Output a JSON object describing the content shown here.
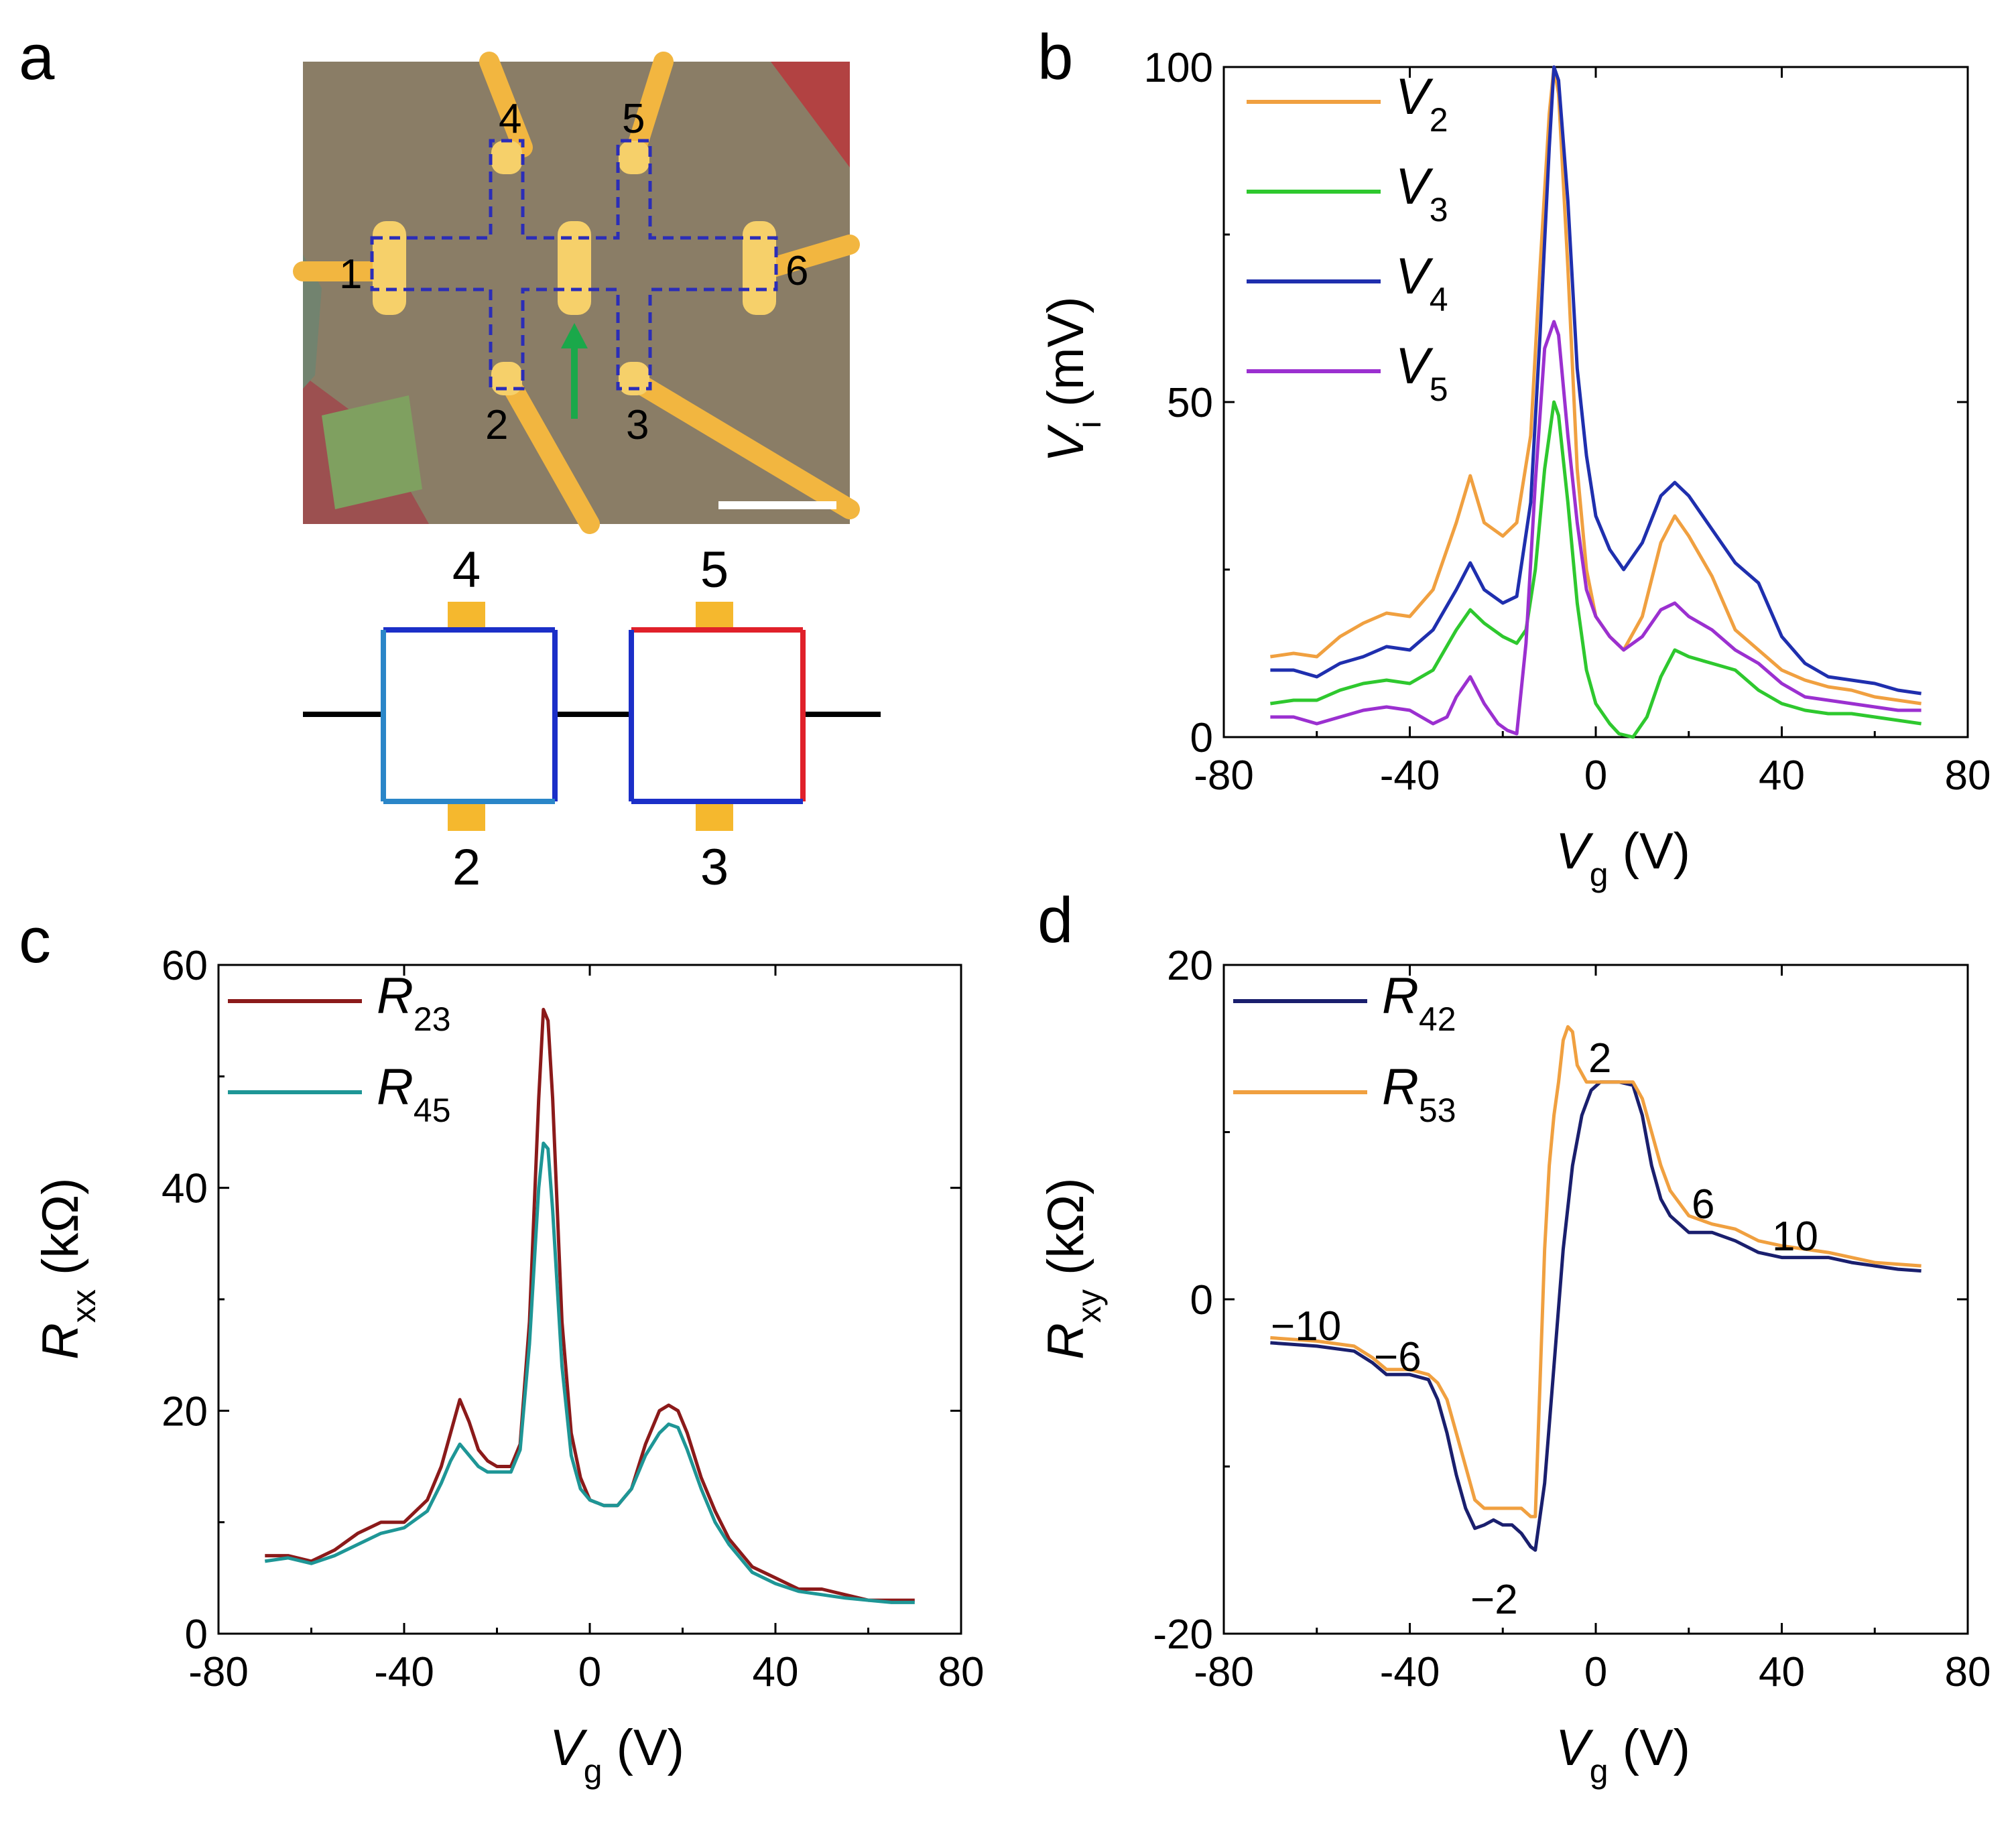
{
  "panels": {
    "a": {
      "label": "a",
      "contact_labels": [
        "1",
        "2",
        "3",
        "4",
        "5",
        "6"
      ],
      "diagram_labels": {
        "top_left": "4",
        "top_right": "5",
        "bottom_left": "2",
        "bottom_right": "3"
      },
      "colors": {
        "substrate": "#8a7d66",
        "contact": "#f2b640",
        "outline": "#2b2db8",
        "arrow": "#1aa84a",
        "blue": "#1b2fc8",
        "lightblue": "#2a86c8",
        "red": "#e0202a",
        "pad": "#f5b82e"
      }
    },
    "b": {
      "label": "b"
    },
    "c": {
      "label": "c"
    },
    "d": {
      "label": "d",
      "annotations": [
        "2",
        "6",
        "10",
        "−10",
        "−6",
        "−2"
      ]
    }
  },
  "chart_data": [
    {
      "panel": "b",
      "type": "line",
      "xlabel": "V",
      "xlabel_sub": "g",
      "xunit": "(V)",
      "ylabel": "V",
      "ylabel_sub": "i",
      "yunit": "(mV)",
      "xlim": [
        -80,
        80
      ],
      "ylim": [
        0,
        100
      ],
      "xticks": [
        "-80",
        "-40",
        "0",
        "40",
        "80"
      ],
      "yticks": [
        "0",
        "50",
        "100"
      ],
      "legend_position": "top-left",
      "series": [
        {
          "name": "V",
          "sub": "2",
          "color": "#f0a040",
          "x": [
            -70,
            -65,
            -60,
            -55,
            -50,
            -45,
            -40,
            -35,
            -30,
            -27,
            -24,
            -20,
            -17,
            -14,
            -12,
            -10,
            -9,
            -8,
            -6,
            -4,
            -2,
            0,
            3,
            6,
            10,
            14,
            17,
            20,
            25,
            30,
            35,
            40,
            45,
            50,
            55,
            60,
            65,
            70
          ],
          "y": [
            12,
            12.5,
            12,
            15,
            17,
            18.5,
            18,
            22,
            32,
            39,
            32,
            30,
            32,
            45,
            70,
            93,
            100,
            96,
            70,
            40,
            25,
            18,
            15,
            13,
            18,
            29,
            33,
            30,
            24,
            16,
            13,
            10,
            8.5,
            7.5,
            7,
            6,
            5.5,
            5
          ]
        },
        {
          "name": "V",
          "sub": "3",
          "color": "#2ec82e",
          "x": [
            -70,
            -65,
            -60,
            -55,
            -50,
            -45,
            -40,
            -35,
            -30,
            -27,
            -24,
            -20,
            -17,
            -15,
            -13,
            -11,
            -9,
            -8,
            -6,
            -4,
            -2,
            0,
            3,
            5,
            8,
            11,
            14,
            17,
            20,
            25,
            30,
            35,
            40,
            45,
            50,
            55,
            60,
            65,
            70
          ],
          "y": [
            5,
            5.5,
            5.5,
            7,
            8,
            8.5,
            8,
            10,
            16,
            19,
            17,
            15,
            14,
            16,
            25,
            40,
            50,
            48,
            35,
            20,
            10,
            5,
            2,
            0.5,
            0,
            3,
            9,
            13,
            12,
            11,
            10,
            7,
            5,
            4,
            3.5,
            3.5,
            3,
            2.5,
            2
          ]
        },
        {
          "name": "V",
          "sub": "4",
          "color": "#1f2fae",
          "x": [
            -70,
            -65,
            -60,
            -55,
            -50,
            -45,
            -40,
            -35,
            -30,
            -27,
            -24,
            -20,
            -17,
            -14,
            -12,
            -10,
            -9,
            -8,
            -6,
            -4,
            -2,
            0,
            3,
            6,
            10,
            14,
            17,
            20,
            25,
            30,
            35,
            40,
            45,
            50,
            55,
            60,
            65,
            70
          ],
          "y": [
            10,
            10,
            9,
            11,
            12,
            13.5,
            13,
            16,
            22,
            26,
            22,
            20,
            21,
            35,
            60,
            88,
            100,
            98,
            80,
            55,
            42,
            33,
            28,
            25,
            29,
            36,
            38,
            36,
            31,
            26,
            23,
            15,
            11,
            9,
            8.5,
            8,
            7,
            6.5
          ]
        },
        {
          "name": "V",
          "sub": "5",
          "color": "#9b30d0",
          "x": [
            -70,
            -65,
            -60,
            -55,
            -50,
            -45,
            -40,
            -35,
            -32,
            -30,
            -27,
            -24,
            -21,
            -19,
            -17,
            -15,
            -13,
            -11,
            -9,
            -8,
            -6,
            -4,
            -2,
            0,
            3,
            6,
            10,
            14,
            17,
            20,
            25,
            30,
            35,
            40,
            45,
            50,
            55,
            60,
            65,
            70
          ],
          "y": [
            3,
            3,
            2,
            3,
            4,
            4.5,
            4,
            2,
            3,
            6,
            9,
            5,
            2,
            1,
            0.5,
            14,
            38,
            58,
            62,
            60,
            45,
            32,
            22,
            18,
            15,
            13,
            15,
            19,
            20,
            18,
            16,
            13,
            11,
            8,
            6,
            5.5,
            5,
            4.5,
            4,
            4
          ]
        }
      ]
    },
    {
      "panel": "c",
      "type": "line",
      "xlabel": "V",
      "xlabel_sub": "g",
      "xunit": "(V)",
      "ylabel": "R",
      "ylabel_sub": "xx",
      "yunit": "(kΩ)",
      "xlim": [
        -80,
        80
      ],
      "ylim": [
        0,
        60
      ],
      "xticks": [
        "-80",
        "-40",
        "0",
        "40",
        "80"
      ],
      "yticks": [
        "0",
        "20",
        "40",
        "60"
      ],
      "legend_position": "top-left",
      "series": [
        {
          "name": "R",
          "sub": "23",
          "color": "#8b1a1a",
          "x": [
            -70,
            -65,
            -60,
            -55,
            -50,
            -45,
            -40,
            -35,
            -32,
            -30,
            -28,
            -26,
            -24,
            -22,
            -20,
            -17,
            -15,
            -13,
            -11,
            -10,
            -9,
            -8,
            -6,
            -4,
            -2,
            0,
            3,
            6,
            9,
            12,
            15,
            17,
            19,
            21,
            24,
            27,
            30,
            35,
            40,
            45,
            50,
            55,
            60,
            65,
            70
          ],
          "y": [
            7,
            7,
            6.5,
            7.5,
            9,
            10,
            10,
            12,
            15,
            18,
            21,
            19,
            16.5,
            15.5,
            15,
            15,
            17,
            28,
            48,
            56,
            55,
            48,
            28,
            18,
            14,
            12,
            11.5,
            11.5,
            13,
            17,
            20,
            20.5,
            20,
            18,
            14,
            11,
            8.5,
            6,
            5,
            4,
            4,
            3.5,
            3,
            3,
            3
          ]
        },
        {
          "name": "R",
          "sub": "45",
          "color": "#1e9696",
          "x": [
            -70,
            -65,
            -60,
            -55,
            -50,
            -45,
            -40,
            -35,
            -32,
            -30,
            -28,
            -26,
            -24,
            -22,
            -20,
            -17,
            -15,
            -13,
            -11,
            -10,
            -9,
            -8,
            -6,
            -4,
            -2,
            0,
            3,
            6,
            9,
            12,
            15,
            17,
            19,
            21,
            24,
            27,
            30,
            35,
            40,
            45,
            50,
            55,
            60,
            65,
            70
          ],
          "y": [
            6.5,
            6.8,
            6.3,
            7,
            8,
            9,
            9.5,
            11,
            13.5,
            15.5,
            17,
            16,
            15,
            14.5,
            14.5,
            14.5,
            16.5,
            26,
            40,
            44,
            43.5,
            38,
            24,
            16,
            13,
            12,
            11.5,
            11.5,
            13,
            16,
            18,
            18.8,
            18.5,
            16.5,
            13,
            10,
            8,
            5.5,
            4.5,
            3.8,
            3.5,
            3.2,
            3,
            2.8,
            2.8
          ]
        }
      ]
    },
    {
      "panel": "d",
      "type": "line",
      "xlabel": "V",
      "xlabel_sub": "g",
      "xunit": "(V)",
      "ylabel": "R",
      "ylabel_sub": "xy",
      "yunit": "(kΩ)",
      "xlim": [
        -80,
        80
      ],
      "ylim": [
        -20,
        20
      ],
      "xticks": [
        "-80",
        "-40",
        "0",
        "40",
        "80"
      ],
      "yticks": [
        "-20",
        "0",
        "20"
      ],
      "legend_position": "top-left",
      "series": [
        {
          "name": "R",
          "sub": "42",
          "color": "#1a1f6e",
          "x": [
            -70,
            -60,
            -52,
            -48,
            -45,
            -40,
            -36,
            -34,
            -32,
            -30,
            -28,
            -26,
            -24,
            -22,
            -20,
            -18,
            -16,
            -14,
            -13,
            -11,
            -9,
            -7,
            -5,
            -3,
            -1,
            1,
            5,
            8,
            10,
            12,
            14,
            16,
            20,
            25,
            30,
            35,
            40,
            45,
            50,
            55,
            60,
            65,
            70
          ],
          "y": [
            -2.6,
            -2.8,
            -3.1,
            -3.8,
            -4.5,
            -4.5,
            -4.8,
            -6,
            -8,
            -10.5,
            -12.5,
            -13.7,
            -13.5,
            -13.2,
            -13.5,
            -13.5,
            -14,
            -14.8,
            -15,
            -11,
            -4,
            3,
            8,
            11,
            12.5,
            13,
            13,
            12.8,
            11,
            8,
            6,
            5,
            4,
            4,
            3.5,
            2.8,
            2.5,
            2.5,
            2.5,
            2.2,
            2,
            1.8,
            1.7
          ]
        },
        {
          "name": "R",
          "sub": "53",
          "color": "#f0a040",
          "x": [
            -70,
            -60,
            -52,
            -48,
            -45,
            -40,
            -36,
            -34,
            -32,
            -30,
            -28,
            -26,
            -24,
            -22,
            -20,
            -18,
            -16,
            -14,
            -13,
            -12,
            -11,
            -10,
            -9,
            -8,
            -7,
            -6,
            -5,
            -4,
            -2,
            0,
            5,
            8,
            10,
            12,
            14,
            16,
            20,
            25,
            30,
            35,
            40,
            45,
            50,
            55,
            60,
            65,
            70
          ],
          "y": [
            -2.3,
            -2.5,
            -2.8,
            -3.5,
            -4.2,
            -4.2,
            -4.5,
            -5,
            -6,
            -8,
            -10,
            -12,
            -12.5,
            -12.5,
            -12.5,
            -12.5,
            -12.5,
            -13,
            -13,
            -5,
            3,
            8,
            11,
            13,
            15.5,
            16.3,
            16,
            14,
            13,
            13,
            13,
            13,
            12,
            10,
            8,
            6.5,
            5,
            4.5,
            4.2,
            3.5,
            3.2,
            3,
            2.8,
            2.5,
            2.2,
            2.1,
            2
          ]
        }
      ]
    }
  ]
}
